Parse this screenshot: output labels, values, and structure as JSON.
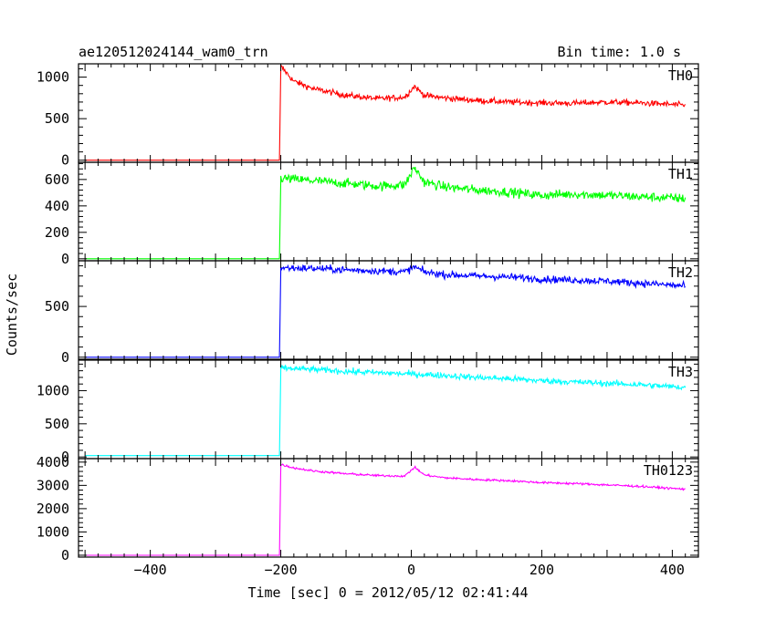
{
  "chart_data": {
    "type": "line",
    "title_left": "ae120512024144_wam0_trn",
    "title_right": "Bin time: 1.0 s",
    "xlabel": "Time [sec] 0 = 2012/05/12 02:41:44",
    "ylabel": "Counts/sec",
    "xlim": [
      -510,
      440
    ],
    "x_ticks": [
      -400,
      -200,
      0,
      200,
      400
    ],
    "x_tick_labels": [
      "−400",
      "−200",
      "0",
      "200",
      "400"
    ],
    "grid": false,
    "series": [
      {
        "name": "TH0",
        "color": "#ff0000",
        "ylim": [
          -25,
          1160
        ],
        "y_ticks": [
          0,
          500,
          1000
        ],
        "background": 0,
        "points": [
          [
            -200,
            1130
          ],
          [
            -180,
            950
          ],
          [
            -150,
            860
          ],
          [
            -100,
            780
          ],
          [
            -50,
            740
          ],
          [
            -10,
            760
          ],
          [
            5,
            890
          ],
          [
            20,
            780
          ],
          [
            50,
            750
          ],
          [
            100,
            720
          ],
          [
            150,
            700
          ],
          [
            200,
            690
          ],
          [
            250,
            685
          ],
          [
            300,
            700
          ],
          [
            350,
            690
          ],
          [
            400,
            670
          ],
          [
            420,
            660
          ]
        ],
        "noise": 35
      },
      {
        "name": "TH1",
        "color": "#00ff00",
        "ylim": [
          -15,
          730
        ],
        "y_ticks": [
          0,
          200,
          400,
          600
        ],
        "background": 0,
        "points": [
          [
            -200,
            610
          ],
          [
            -150,
            590
          ],
          [
            -100,
            570
          ],
          [
            -50,
            550
          ],
          [
            -10,
            560
          ],
          [
            5,
            690
          ],
          [
            20,
            580
          ],
          [
            50,
            545
          ],
          [
            100,
            520
          ],
          [
            150,
            505
          ],
          [
            200,
            480
          ],
          [
            250,
            490
          ],
          [
            300,
            480
          ],
          [
            350,
            470
          ],
          [
            400,
            460
          ],
          [
            420,
            455
          ]
        ],
        "noise": 35
      },
      {
        "name": "TH2",
        "color": "#0000ff",
        "ylim": [
          -20,
          950
        ],
        "y_ticks": [
          0,
          500
        ],
        "background": 0,
        "points": [
          [
            -200,
            880
          ],
          [
            -150,
            875
          ],
          [
            -100,
            860
          ],
          [
            -50,
            850
          ],
          [
            -10,
            840
          ],
          [
            5,
            890
          ],
          [
            20,
            840
          ],
          [
            50,
            815
          ],
          [
            100,
            800
          ],
          [
            150,
            790
          ],
          [
            200,
            770
          ],
          [
            250,
            760
          ],
          [
            300,
            750
          ],
          [
            350,
            730
          ],
          [
            400,
            710
          ],
          [
            420,
            700
          ]
        ],
        "noise": 35
      },
      {
        "name": "TH3",
        "color": "#00ffff",
        "ylim": [
          -25,
          1460
        ],
        "y_ticks": [
          0,
          500,
          1000
        ],
        "background": 20,
        "points": [
          [
            -200,
            1340
          ],
          [
            -150,
            1320
          ],
          [
            -100,
            1290
          ],
          [
            -50,
            1270
          ],
          [
            0,
            1250
          ],
          [
            50,
            1230
          ],
          [
            100,
            1200
          ],
          [
            150,
            1180
          ],
          [
            200,
            1150
          ],
          [
            250,
            1130
          ],
          [
            300,
            1110
          ],
          [
            350,
            1090
          ],
          [
            400,
            1060
          ],
          [
            420,
            1050
          ]
        ],
        "noise": 45
      },
      {
        "name": "TH0123",
        "color": "#ff00ff",
        "ylim": [
          -80,
          4150
        ],
        "y_ticks": [
          0,
          1000,
          2000,
          3000,
          4000
        ],
        "background": 0,
        "points": [
          [
            -200,
            3900
          ],
          [
            -180,
            3750
          ],
          [
            -150,
            3620
          ],
          [
            -100,
            3500
          ],
          [
            -50,
            3420
          ],
          [
            -10,
            3400
          ],
          [
            5,
            3780
          ],
          [
            20,
            3450
          ],
          [
            50,
            3330
          ],
          [
            100,
            3250
          ],
          [
            150,
            3200
          ],
          [
            200,
            3120
          ],
          [
            250,
            3080
          ],
          [
            300,
            3020
          ],
          [
            350,
            2960
          ],
          [
            400,
            2870
          ],
          [
            420,
            2840
          ]
        ],
        "noise": 45
      }
    ]
  }
}
